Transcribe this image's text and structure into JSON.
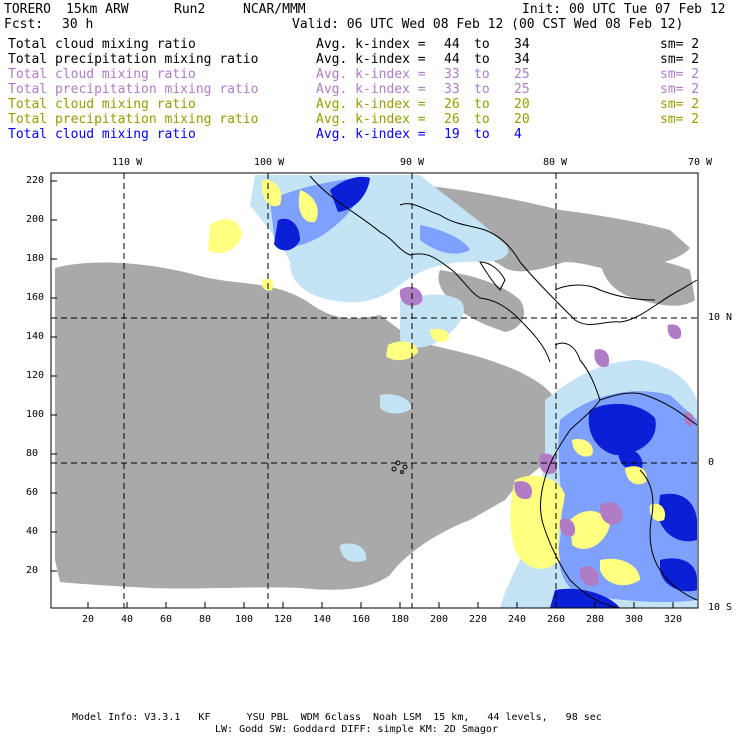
{
  "header": {
    "model": "TORERO",
    "config": "15km ARW",
    "run": "Run2",
    "org": "NCAR/MMM",
    "init": "Init: 00 UTC Tue 07 Feb 12",
    "fcst_label": "Fcst:",
    "fcst_value": "30 h",
    "valid": "Valid: 06 UTC Wed 08 Feb 12 (00 CST Wed 08 Feb 12)"
  },
  "legend": [
    {
      "field": "Total cloud mixing ratio",
      "kindex": "Avg. k-index =",
      "from": "44",
      "to_word": "to",
      "to": "34",
      "sm": "sm= 2",
      "color": "#000000"
    },
    {
      "field": "Total precipitation mixing ratio",
      "kindex": "Avg. k-index =",
      "from": "44",
      "to_word": "to",
      "to": "34",
      "sm": "sm= 2",
      "color": "#000000"
    },
    {
      "field": "Total cloud mixing ratio",
      "kindex": "Avg. k-index =",
      "from": "33",
      "to_word": "to",
      "to": "25",
      "sm": "sm= 2",
      "color": "#b07cc6"
    },
    {
      "field": "Total precipitation mixing ratio",
      "kindex": "Avg. k-index =",
      "from": "33",
      "to_word": "to",
      "to": "25",
      "sm": "sm= 2",
      "color": "#b07cc6"
    },
    {
      "field": "Total cloud mixing ratio",
      "kindex": "Avg. k-index =",
      "from": "26",
      "to_word": "to",
      "to": "20",
      "sm": "sm= 2",
      "color": "#9a9a00"
    },
    {
      "field": "Total precipitation mixing ratio",
      "kindex": "Avg. k-index =",
      "from": "26",
      "to_word": "to",
      "to": "20",
      "sm": "sm= 2",
      "color": "#9a9a00"
    },
    {
      "field": "Total cloud mixing ratio",
      "kindex": "Avg. k-index =",
      "from": "19",
      "to_word": "to",
      "to": "4",
      "sm": "",
      "color": "#0000ff"
    }
  ],
  "map": {
    "lon_labels": [
      "110 W",
      "100 W",
      "90 W",
      "80 W",
      "70 W"
    ],
    "lat_labels": [
      "10 N",
      "0",
      "10 S"
    ],
    "y_ticks": [
      "220",
      "200",
      "180",
      "160",
      "140",
      "120",
      "100",
      "80",
      "60",
      "40",
      "20"
    ],
    "x_ticks": [
      "20",
      "40",
      "60",
      "80",
      "100",
      "120",
      "140",
      "160",
      "180",
      "200",
      "220",
      "240",
      "260",
      "280",
      "300",
      "320"
    ],
    "colors": {
      "gray": "#a9a9a9",
      "light_blue": "#c4e4f5",
      "mid_blue": "#7ea0ff",
      "dark_blue": "#0a1fd6",
      "yellow": "#ffff80",
      "purple": "#b07cc6"
    }
  },
  "footer": {
    "line1": "Model Info: V3.3.1   KF      YSU PBL  WDM 6class  Noah LSM  15 km,   44 levels,   98 sec",
    "line2": "LW: Godd SW: Goddard DIFF: simple KM: 2D Smagor"
  }
}
